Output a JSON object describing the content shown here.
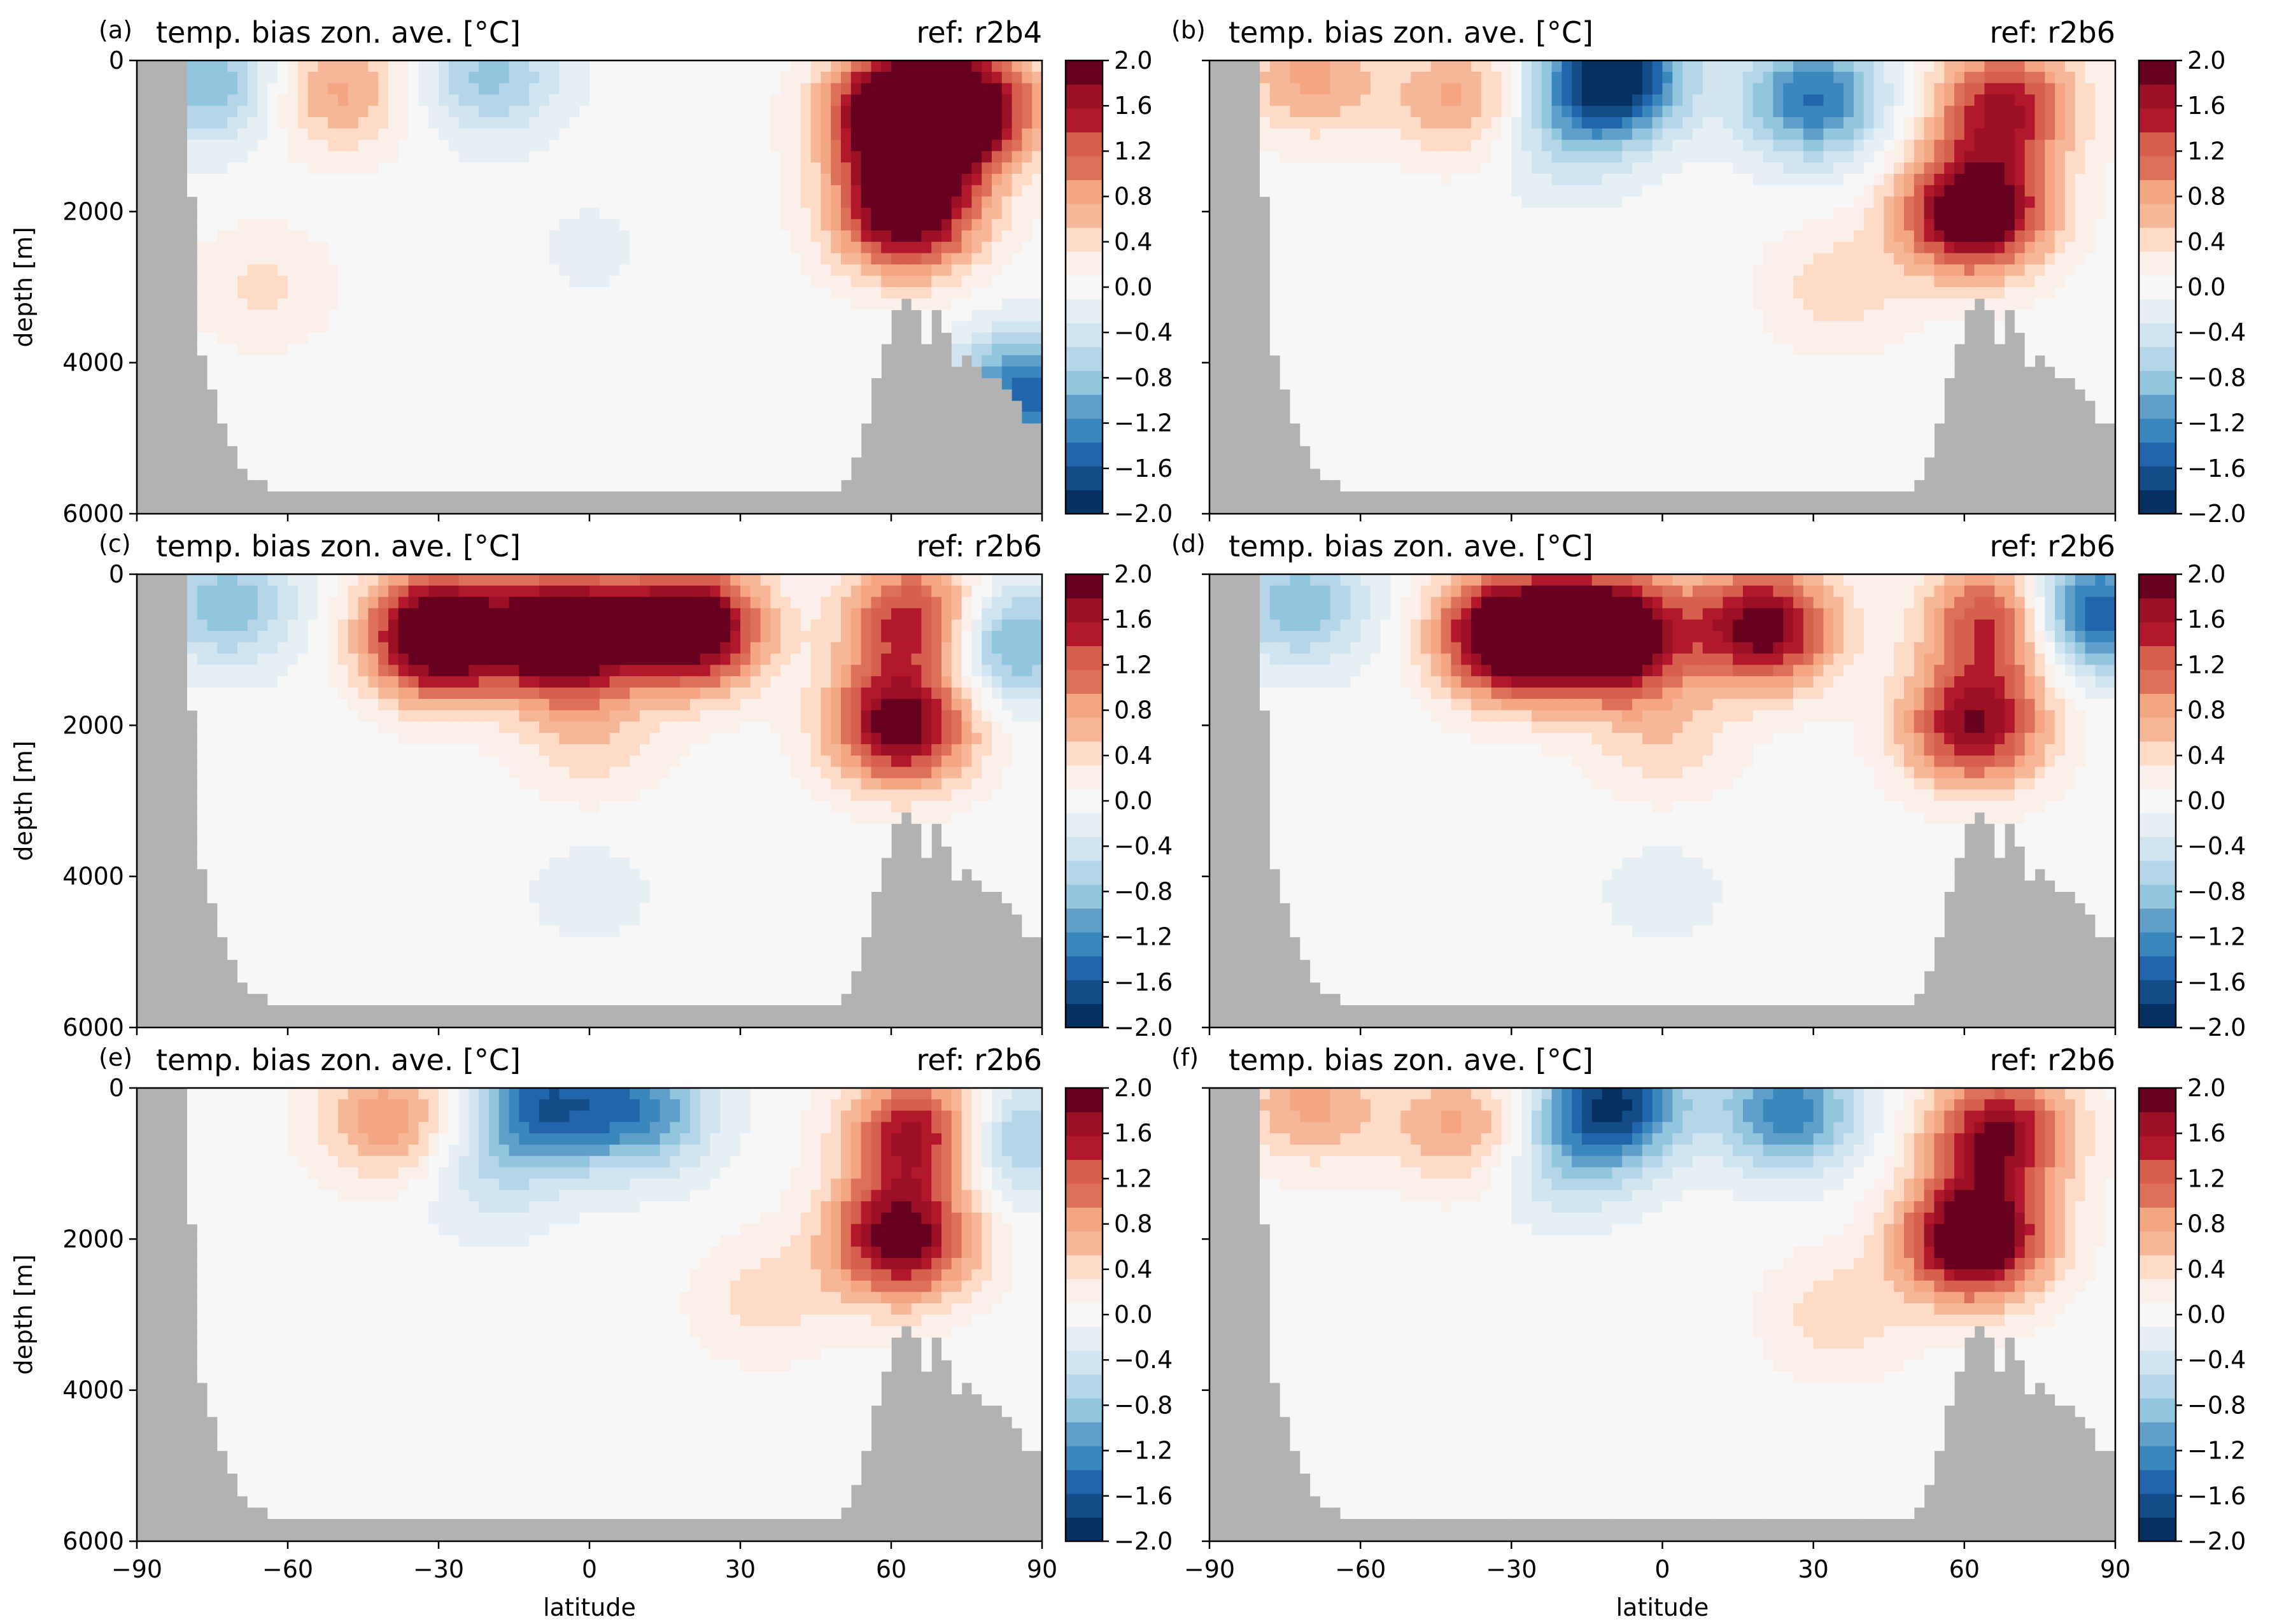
{
  "figure": {
    "colors": {
      "land": "#b2b2b2",
      "cmap": [
        "#053061",
        "#134c87",
        "#2166ac",
        "#3a87bd",
        "#609fca",
        "#92c5de",
        "#b4d6e8",
        "#d1e5f0",
        "#e6eff4",
        "#f7f7f7",
        "#fbefe9",
        "#fddbc7",
        "#f6b799",
        "#f4a582",
        "#dd7059",
        "#d6604d",
        "#b2182b",
        "#9b1025",
        "#67001f"
      ]
    },
    "x_ticks": [
      "−90",
      "−60",
      "−30",
      "0",
      "30",
      "60",
      "90"
    ],
    "x_label": "latitude",
    "y_ticks": [
      "0",
      "2000",
      "4000",
      "6000"
    ],
    "y_label": "depth [m]",
    "cbar_ticks": [
      "2.0",
      "1.6",
      "1.2",
      "0.8",
      "0.4",
      "0.0",
      "−0.4",
      "−0.8",
      "−1.2",
      "−1.6",
      "−2.0"
    ]
  },
  "chart_data": [
    {
      "type": "heatmap",
      "panel": "(a)",
      "title": "temp. bias zon. ave. [°C]",
      "ref": "ref: r2b4",
      "xlim": [
        -90,
        90
      ],
      "ylim": [
        6000,
        0
      ],
      "clim": [
        -2.0,
        2.0
      ],
      "features": [
        {
          "lat": -50,
          "depth": 400,
          "value": 0.8
        },
        {
          "lat": -20,
          "depth": 200,
          "value": -0.8
        },
        {
          "lat": 60,
          "depth": 700,
          "value": 1.4
        },
        {
          "lat": 68,
          "depth": 700,
          "value": 2.6
        },
        {
          "lat": 63,
          "depth": 2000,
          "value": 2.2
        },
        {
          "lat": -65,
          "depth": 3000,
          "value": 0.35
        },
        {
          "lat": 80,
          "depth": 600,
          "value": 0.8
        },
        {
          "lat": -75,
          "depth": 300,
          "value": -0.9
        },
        {
          "lat": 0,
          "depth": 2500,
          "value": -0.15
        },
        {
          "lat": 87,
          "depth": 4400,
          "value": -1.5
        }
      ]
    },
    {
      "type": "heatmap",
      "panel": "(b)",
      "title": "temp. bias zon. ave. [°C]",
      "ref": "ref: r2b6",
      "xlim": [
        -90,
        90
      ],
      "ylim": [
        6000,
        0
      ],
      "clim": [
        -2.0,
        2.0
      ],
      "features": [
        {
          "lat": -10,
          "depth": 200,
          "value": -2.1
        },
        {
          "lat": 30,
          "depth": 500,
          "value": -1.4
        },
        {
          "lat": -40,
          "depth": 500,
          "value": 0.8
        },
        {
          "lat": 62,
          "depth": 2000,
          "value": 2.4
        },
        {
          "lat": 68,
          "depth": 600,
          "value": 1.6
        },
        {
          "lat": 35,
          "depth": 3000,
          "value": 0.45
        },
        {
          "lat": -20,
          "depth": 1000,
          "value": -0.5
        },
        {
          "lat": -70,
          "depth": 200,
          "value": 0.8
        }
      ]
    },
    {
      "type": "heatmap",
      "panel": "(c)",
      "title": "temp. bias zon. ave. [°C]",
      "ref": "ref: r2b6",
      "xlim": [
        -90,
        90
      ],
      "ylim": [
        6000,
        0
      ],
      "clim": [
        -2.0,
        2.0
      ],
      "features": [
        {
          "lat": -5,
          "depth": 800,
          "value": 2.6
        },
        {
          "lat": -30,
          "depth": 800,
          "value": 2.6
        },
        {
          "lat": 20,
          "depth": 700,
          "value": 2.4
        },
        {
          "lat": 62,
          "depth": 2000,
          "value": 2.0
        },
        {
          "lat": 65,
          "depth": 600,
          "value": 1.6
        },
        {
          "lat": 82,
          "depth": 900,
          "value": -1.2
        },
        {
          "lat": 0,
          "depth": 2200,
          "value": 0.45
        },
        {
          "lat": -72,
          "depth": 400,
          "value": -0.9
        },
        {
          "lat": 0,
          "depth": 4200,
          "value": -0.2
        }
      ]
    },
    {
      "type": "heatmap",
      "panel": "(d)",
      "title": "temp. bias zon. ave. [°C]",
      "ref": "ref: r2b6",
      "xlim": [
        -90,
        90
      ],
      "ylim": [
        6000,
        0
      ],
      "clim": [
        -2.0,
        2.0
      ],
      "features": [
        {
          "lat": -10,
          "depth": 800,
          "value": 2.6
        },
        {
          "lat": -30,
          "depth": 800,
          "value": 2.6
        },
        {
          "lat": 20,
          "depth": 700,
          "value": 2.0
        },
        {
          "lat": 62,
          "depth": 2000,
          "value": 1.8
        },
        {
          "lat": 67,
          "depth": 600,
          "value": 1.6
        },
        {
          "lat": 84,
          "depth": 500,
          "value": -1.8
        },
        {
          "lat": 0,
          "depth": 2200,
          "value": 0.45
        },
        {
          "lat": -72,
          "depth": 400,
          "value": -0.9
        },
        {
          "lat": 0,
          "depth": 4200,
          "value": -0.2
        }
      ]
    },
    {
      "type": "heatmap",
      "panel": "(e)",
      "title": "temp. bias zon. ave. [°C]",
      "ref": "ref: r2b6",
      "xlim": [
        -90,
        90
      ],
      "ylim": [
        6000,
        0
      ],
      "clim": [
        -2.0,
        2.0
      ],
      "features": [
        {
          "lat": -10,
          "depth": 200,
          "value": -1.4
        },
        {
          "lat": 10,
          "depth": 300,
          "value": -1.2
        },
        {
          "lat": -40,
          "depth": 400,
          "value": 0.9
        },
        {
          "lat": 62,
          "depth": 2000,
          "value": 2.0
        },
        {
          "lat": 66,
          "depth": 600,
          "value": 1.8
        },
        {
          "lat": 82,
          "depth": 700,
          "value": -1.0
        },
        {
          "lat": 35,
          "depth": 2800,
          "value": 0.4
        },
        {
          "lat": -20,
          "depth": 1200,
          "value": -0.4
        }
      ]
    },
    {
      "type": "heatmap",
      "panel": "(f)",
      "title": "temp. bias zon. ave. [°C]",
      "ref": "ref: r2b6",
      "xlim": [
        -90,
        90
      ],
      "ylim": [
        6000,
        0
      ],
      "clim": [
        -2.0,
        2.0
      ],
      "features": [
        {
          "lat": -10,
          "depth": 200,
          "value": -1.8
        },
        {
          "lat": 25,
          "depth": 300,
          "value": -1.3
        },
        {
          "lat": -40,
          "depth": 500,
          "value": 0.8
        },
        {
          "lat": 62,
          "depth": 2000,
          "value": 2.4
        },
        {
          "lat": 67,
          "depth": 600,
          "value": 1.8
        },
        {
          "lat": 35,
          "depth": 3000,
          "value": 0.45
        },
        {
          "lat": -20,
          "depth": 1000,
          "value": -0.5
        },
        {
          "lat": -70,
          "depth": 200,
          "value": 0.8
        }
      ]
    }
  ]
}
